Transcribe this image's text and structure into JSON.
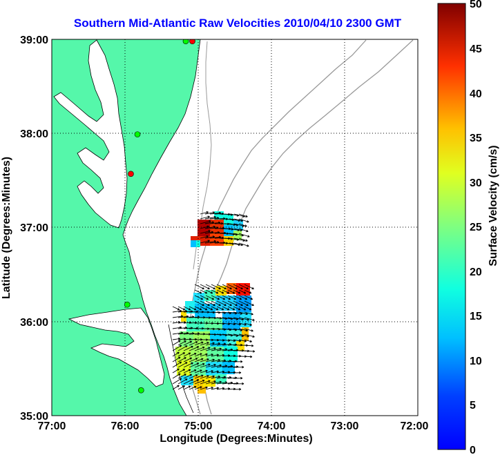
{
  "title": "Southern Mid-Atlantic Raw Velocities 2010/04/10 2300 GMT",
  "map": {
    "xlabel": "Longitude (Degrees:Minutes)",
    "ylabel": "Latitude (Degrees:Minutes)",
    "lon_ticks": [
      "77:00",
      "76:00",
      "75:00",
      "74:00",
      "73:00",
      "72:00"
    ],
    "lat_ticks": [
      "39:00",
      "38:00",
      "37:00",
      "36:00",
      "35:00"
    ],
    "lon_range": [
      -77,
      -72
    ],
    "lat_range": [
      35,
      39
    ],
    "grid": true,
    "land_color": "#55f7aa",
    "water_color": "#ffffff",
    "stations": [
      {
        "lon": -75.08,
        "lat": 38.98,
        "color": "#ff0000"
      },
      {
        "lon": -75.17,
        "lat": 38.98,
        "color": "#00ff00"
      },
      {
        "lon": -75.83,
        "lat": 37.99,
        "color": "#00ff00"
      },
      {
        "lon": -75.92,
        "lat": 37.57,
        "color": "#ff0000"
      },
      {
        "lon": -75.97,
        "lat": 36.18,
        "color": "#00ff00"
      },
      {
        "lon": -75.78,
        "lat": 35.27,
        "color": "#00ff00"
      }
    ]
  },
  "colorbar": {
    "label": "Surface Velocity (cm/s)",
    "min": 0,
    "max": 50,
    "ticks": [
      "50",
      "45",
      "40",
      "35",
      "30",
      "25",
      "20",
      "15",
      "10",
      "5",
      "0"
    ]
  }
}
